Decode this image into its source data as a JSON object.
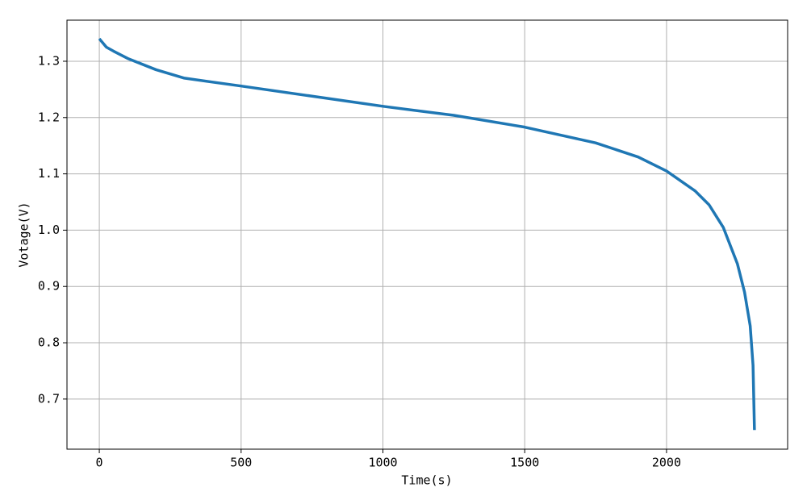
{
  "chart_data": {
    "type": "line",
    "x_label": "Time(s)",
    "y_label": "Votage(V)",
    "x": [
      0,
      25,
      50,
      100,
      200,
      300,
      500,
      750,
      1000,
      1250,
      1500,
      1750,
      1900,
      2000,
      2100,
      2150,
      2200,
      2250,
      2275,
      2295,
      2305,
      2310
    ],
    "values": [
      1.34,
      1.325,
      1.318,
      1.305,
      1.285,
      1.27,
      1.256,
      1.238,
      1.22,
      1.204,
      1.183,
      1.155,
      1.13,
      1.105,
      1.07,
      1.045,
      1.005,
      0.94,
      0.89,
      0.83,
      0.76,
      0.645
    ],
    "color": "#1f77b4",
    "xlim": [
      -114,
      2427
    ],
    "ylim": [
      0.611,
      1.373
    ],
    "xticks": [
      0,
      500,
      1000,
      1500,
      2000
    ],
    "yticks": [
      0.7,
      0.8,
      0.9,
      {
        "value": 1,
        "label": "1.0"
      },
      1.1,
      1.2,
      1.3
    ],
    "grid": true
  }
}
